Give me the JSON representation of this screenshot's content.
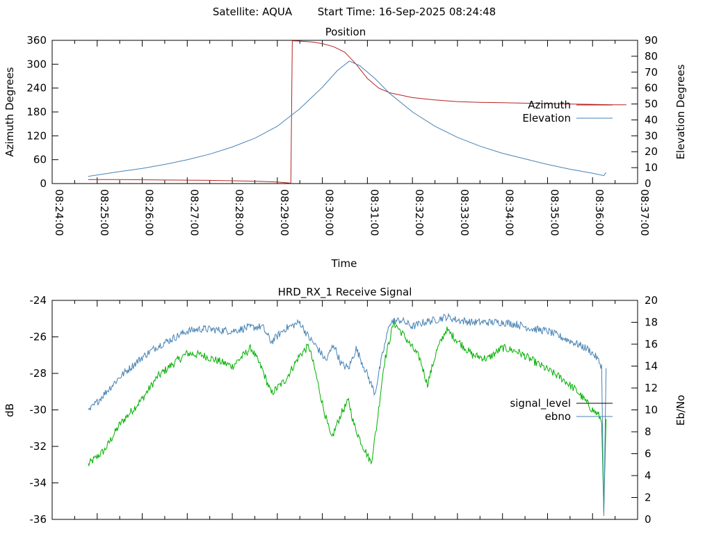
{
  "header": {
    "satellite": "Satellite: AQUA",
    "start_time": "Start Time: 16-Sep-2025 08:24:48"
  },
  "chart_data": [
    {
      "type": "line",
      "title": "Position",
      "xlabel": "Time",
      "ylabel": "Azimuth Degrees",
      "y2label": "Elevation Degrees",
      "x_ticks": [
        "08:24:00",
        "08:25:00",
        "08:26:00",
        "08:27:00",
        "08:28:00",
        "08:29:00",
        "08:30:00",
        "08:31:00",
        "08:32:00",
        "08:33:00",
        "08:34:00",
        "08:35:00",
        "08:36:00",
        "08:37:00"
      ],
      "xlim": [
        "08:24:00",
        "08:37:00"
      ],
      "ylim": [
        0,
        360
      ],
      "y_ticks": [
        0,
        60,
        120,
        180,
        240,
        300,
        360
      ],
      "y2lim": [
        0,
        90
      ],
      "y2_ticks": [
        0,
        10,
        20,
        30,
        40,
        50,
        60,
        70,
        80,
        90
      ],
      "legend_position": "right",
      "series": [
        {
          "name": "Azimuth",
          "axis": "y",
          "color": "#b22222",
          "x": [
            "08:24:48",
            "08:25:30",
            "08:26:30",
            "08:27:30",
            "08:28:00",
            "08:28:30",
            "08:29:00",
            "08:29:18",
            "08:29:20",
            "08:29:30",
            "08:29:45",
            "08:30:00",
            "08:30:15",
            "08:30:30",
            "08:30:45",
            "08:31:00",
            "08:31:15",
            "08:31:30",
            "08:32:00",
            "08:32:30",
            "08:33:00",
            "08:33:30",
            "08:34:00",
            "08:34:30",
            "08:35:00",
            "08:35:30",
            "08:36:00",
            "08:36:30",
            "08:36:45"
          ],
          "y": [
            10,
            10,
            9,
            8,
            7,
            6,
            4,
            1,
            359,
            358,
            356,
            352,
            344,
            330,
            300,
            264,
            240,
            228,
            216,
            210,
            206,
            204,
            203,
            202,
            201,
            200,
            199,
            198,
            198
          ]
        },
        {
          "name": "Elevation",
          "axis": "y2",
          "color": "#4682b4",
          "x": [
            "08:24:48",
            "08:25:30",
            "08:26:00",
            "08:26:30",
            "08:27:00",
            "08:27:30",
            "08:28:00",
            "08:28:30",
            "08:29:00",
            "08:29:30",
            "08:30:00",
            "08:30:20",
            "08:30:36",
            "08:30:50",
            "08:31:10",
            "08:31:30",
            "08:32:00",
            "08:32:30",
            "08:33:00",
            "08:33:30",
            "08:34:00",
            "08:34:30",
            "08:35:00",
            "08:35:30",
            "08:36:00",
            "08:36:15",
            "08:36:18"
          ],
          "y": [
            4.5,
            7.5,
            9.5,
            12,
            15,
            18.5,
            23,
            28.5,
            36,
            47,
            60.5,
            71,
            77,
            74,
            66,
            56.5,
            45,
            36,
            29,
            23.5,
            19,
            15.5,
            12,
            9,
            6.5,
            5,
            7
          ]
        }
      ]
    },
    {
      "type": "line",
      "title": "HRD_RX_1 Receive Signal",
      "ylabel": "dB",
      "y2label": "Eb/No",
      "xlim": [
        "08:24:00",
        "08:37:00"
      ],
      "ylim": [
        -36,
        -24
      ],
      "y_ticks": [
        -36,
        -34,
        -32,
        -30,
        -28,
        -26,
        -24
      ],
      "y2lim": [
        0,
        20
      ],
      "y2_ticks": [
        0,
        2,
        4,
        6,
        8,
        10,
        12,
        14,
        16,
        18,
        20
      ],
      "legend_position": "right",
      "series": [
        {
          "name": "signal_level",
          "axis": "y",
          "color": "#00b000",
          "legend_line_color": "#000000",
          "x": [
            "08:24:48",
            "08:25:10",
            "08:25:30",
            "08:26:00",
            "08:26:20",
            "08:26:40",
            "08:27:00",
            "08:27:20",
            "08:27:40",
            "08:28:00",
            "08:28:15",
            "08:28:25",
            "08:28:40",
            "08:28:52",
            "08:29:10",
            "08:29:30",
            "08:29:42",
            "08:29:50",
            "08:30:02",
            "08:30:12",
            "08:30:25",
            "08:30:35",
            "08:30:42",
            "08:30:52",
            "08:31:05",
            "08:31:12",
            "08:31:22",
            "08:31:35",
            "08:31:50",
            "08:32:00",
            "08:32:10",
            "08:32:20",
            "08:32:32",
            "08:32:45",
            "08:33:00",
            "08:33:20",
            "08:33:40",
            "08:34:00",
            "08:34:20",
            "08:34:40",
            "08:35:00",
            "08:35:20",
            "08:35:40",
            "08:35:50",
            "08:36:00",
            "08:36:08",
            "08:36:12",
            "08:36:15",
            "08:36:18"
          ],
          "y": [
            -33.0,
            -32.2,
            -30.8,
            -29.4,
            -28.2,
            -27.5,
            -26.9,
            -27.0,
            -27.3,
            -27.6,
            -27.0,
            -26.6,
            -27.8,
            -29.1,
            -28.4,
            -27.0,
            -26.5,
            -27.8,
            -30.0,
            -31.6,
            -30.2,
            -29.5,
            -30.8,
            -31.8,
            -32.9,
            -31.0,
            -27.5,
            -25.2,
            -26.0,
            -26.6,
            -27.2,
            -28.6,
            -26.8,
            -25.6,
            -26.2,
            -27.0,
            -27.2,
            -26.6,
            -26.8,
            -27.3,
            -27.8,
            -28.3,
            -29.0,
            -29.5,
            -30.0,
            -30.3,
            -30.6,
            -35.4,
            -30.5
          ]
        },
        {
          "name": "ebno",
          "axis": "y2",
          "color": "#4682b4",
          "x": [
            "08:24:48",
            "08:25:10",
            "08:25:30",
            "08:26:00",
            "08:26:20",
            "08:26:40",
            "08:27:00",
            "08:27:20",
            "08:27:40",
            "08:28:00",
            "08:28:20",
            "08:28:40",
            "08:28:52",
            "08:29:10",
            "08:29:30",
            "08:29:42",
            "08:29:52",
            "08:30:05",
            "08:30:15",
            "08:30:25",
            "08:30:35",
            "08:30:45",
            "08:31:00",
            "08:31:10",
            "08:31:20",
            "08:31:30",
            "08:31:45",
            "08:32:00",
            "08:32:15",
            "08:32:30",
            "08:32:45",
            "08:33:00",
            "08:33:20",
            "08:33:40",
            "08:34:00",
            "08:34:20",
            "08:34:40",
            "08:35:00",
            "08:35:20",
            "08:35:40",
            "08:35:55",
            "08:36:05",
            "08:36:12",
            "08:36:15",
            "08:36:18"
          ],
          "y": [
            9.8,
            11.5,
            13.0,
            14.8,
            15.8,
            16.5,
            17.2,
            17.4,
            17.3,
            17.2,
            17.5,
            17.6,
            16.2,
            17.4,
            18.0,
            16.6,
            15.8,
            14.5,
            16.0,
            14.2,
            13.8,
            15.6,
            13.2,
            11.5,
            15.0,
            18.0,
            18.2,
            17.6,
            18.0,
            18.2,
            18.5,
            18.2,
            18.0,
            18.0,
            18.0,
            17.8,
            17.4,
            17.2,
            16.6,
            16.0,
            15.5,
            14.8,
            14.0,
            0.5,
            13.8
          ]
        }
      ]
    }
  ]
}
